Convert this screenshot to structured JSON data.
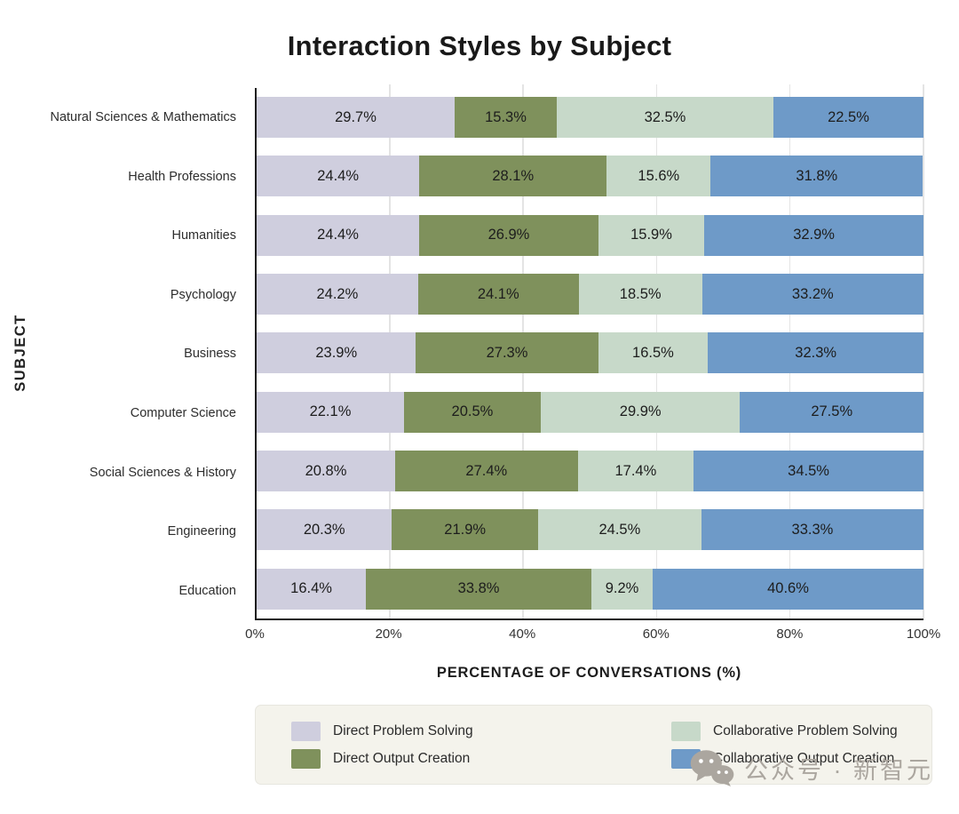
{
  "title": "Interaction Styles by Subject",
  "axes": {
    "y_title": "SUBJECT",
    "x_title": "PERCENTAGE OF CONVERSATIONS (%)"
  },
  "chart_data": {
    "type": "bar",
    "orientation": "horizontal",
    "stacked": true,
    "title": "Interaction Styles by Subject",
    "xlabel": "PERCENTAGE OF CONVERSATIONS (%)",
    "ylabel": "SUBJECT",
    "xlim": [
      0,
      100
    ],
    "x_ticks": [
      0,
      20,
      40,
      60,
      80,
      100
    ],
    "x_tick_labels": [
      "0%",
      "20%",
      "40%",
      "60%",
      "80%",
      "100%"
    ],
    "grid": true,
    "legend_position": "bottom",
    "categories": [
      "Natural Sciences & Mathematics",
      "Health Professions",
      "Humanities",
      "Psychology",
      "Business",
      "Computer Science",
      "Social Sciences & History",
      "Engineering",
      "Education"
    ],
    "series": [
      {
        "name": "Direct Problem Solving",
        "color": "#cfcede",
        "values": [
          29.7,
          24.4,
          24.4,
          24.2,
          23.9,
          22.1,
          20.8,
          20.3,
          16.4
        ]
      },
      {
        "name": "Direct Output Creation",
        "color": "#7f915c",
        "values": [
          15.3,
          28.1,
          26.9,
          24.1,
          27.3,
          20.5,
          27.4,
          21.9,
          33.8
        ]
      },
      {
        "name": "Collaborative Problem Solving",
        "color": "#c7d9c9",
        "values": [
          32.5,
          15.6,
          15.9,
          18.5,
          16.5,
          29.9,
          17.4,
          24.5,
          9.2
        ]
      },
      {
        "name": "Collaborative Output Creation",
        "color": "#6e9ac8",
        "values": [
          22.5,
          31.8,
          32.9,
          33.2,
          32.3,
          27.5,
          34.5,
          33.3,
          40.6
        ]
      }
    ]
  },
  "legend": {
    "items": [
      {
        "label": "Direct Problem Solving",
        "color": "#cfcede"
      },
      {
        "label": "Direct Output Creation",
        "color": "#7f915c"
      },
      {
        "label": "Collaborative Problem Solving",
        "color": "#c7d9c9"
      },
      {
        "label": "Collaborative Output Creation",
        "color": "#6e9ac8"
      }
    ]
  },
  "watermark": {
    "icon": "wechat-icon",
    "text": "公众号 · 新智元",
    "color": "#aba69f"
  },
  "style": {
    "axis_color": "#1a1a1a",
    "gridline_color": "#e4e4e4",
    "legend_bg": "#f4f3ec"
  }
}
